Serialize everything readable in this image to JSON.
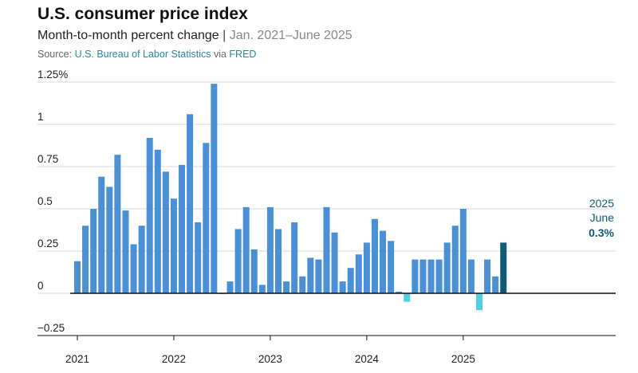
{
  "header": {
    "title": "U.S. consumer price index",
    "subtitle_main": "Month-to-month percent change",
    "subtitle_sep": " | ",
    "subtitle_range": "Jan. 2021–June 2025",
    "source_prefix": "Source: ",
    "source_bls": "U.S. Bureau of Labor Statistics",
    "source_via": " via ",
    "source_fred": "FRED"
  },
  "annotation": {
    "year": "2025",
    "month": "June",
    "value": "0.3%"
  },
  "colors": {
    "positive": "#4a90d9",
    "negative": "#4fd0e3",
    "highlight": "#0e5a78",
    "grid": "#d9d9d9",
    "axis": "#111111"
  },
  "chart_data": {
    "type": "bar",
    "title": "U.S. consumer price index",
    "subtitle": "Month-to-month percent change",
    "xlabel": "",
    "ylabel": "",
    "ylim": [
      -0.25,
      1.25
    ],
    "yticks": [
      -0.25,
      0,
      0.25,
      0.5,
      0.75,
      1,
      1.25
    ],
    "ytick_labels": [
      "−0.25",
      "0",
      "0.25",
      "0.5",
      "0.75",
      "1",
      "1.25%"
    ],
    "xtick_labels": [
      "2021",
      "2022",
      "2023",
      "2024",
      "2025"
    ],
    "grid": true,
    "start": "2021-01",
    "values": [
      0.19,
      0.4,
      0.5,
      0.69,
      0.63,
      0.82,
      0.49,
      0.29,
      0.4,
      0.92,
      0.85,
      0.72,
      0.56,
      0.76,
      1.06,
      0.42,
      0.89,
      1.24,
      0.0,
      0.07,
      0.38,
      0.51,
      0.26,
      0.05,
      0.51,
      0.38,
      0.07,
      0.42,
      0.1,
      0.21,
      0.2,
      0.51,
      0.36,
      0.07,
      0.15,
      0.23,
      0.3,
      0.44,
      0.37,
      0.31,
      0.01,
      -0.05,
      0.2,
      0.2,
      0.2,
      0.2,
      0.3,
      0.4,
      0.5,
      0.2,
      -0.1,
      0.2,
      0.1,
      0.3
    ],
    "highlight_last": true
  }
}
